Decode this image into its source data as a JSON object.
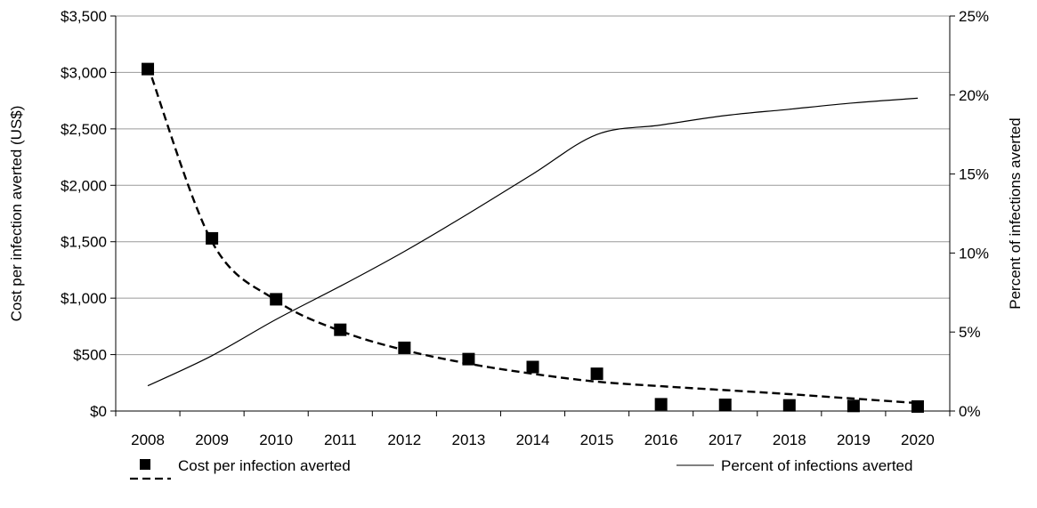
{
  "chart_data": {
    "type": "line",
    "title": "",
    "x": [
      "2008",
      "2009",
      "2010",
      "2011",
      "2012",
      "2013",
      "2014",
      "2015",
      "2016",
      "2017",
      "2018",
      "2019",
      "2020"
    ],
    "xlabel": "",
    "ylabel": "Cost per infection averted (US$)",
    "y2label": "Percent of infections averted",
    "ylim": [
      0,
      3500
    ],
    "y2lim": [
      0,
      25
    ],
    "yticks": [
      "$0",
      "$500",
      "$1,000",
      "$1,500",
      "$2,000",
      "$2,500",
      "$3,000",
      "$3,500"
    ],
    "yticks_values": [
      0,
      500,
      1000,
      1500,
      2000,
      2500,
      3000,
      3500
    ],
    "y2ticks": [
      "0%",
      "5%",
      "10%",
      "15%",
      "20%",
      "25%"
    ],
    "y2ticks_values": [
      0,
      5,
      10,
      15,
      20,
      25
    ],
    "grid": true,
    "legend_position": "bottom",
    "series": [
      {
        "name": "Cost per infection averted",
        "axis": "left",
        "style": "markers-with-dashed-trend",
        "marker": "square",
        "color": "#000000",
        "values": [
          3030,
          1530,
          990,
          720,
          560,
          460,
          390,
          330,
          60,
          55,
          50,
          45,
          40
        ],
        "trend": [
          3060,
          1500,
          980,
          710,
          540,
          420,
          330,
          260,
          220,
          185,
          150,
          110,
          70
        ]
      },
      {
        "name": "Percent of infections averted",
        "axis": "right",
        "style": "solid-line",
        "color": "#000000",
        "values": [
          1.6,
          3.5,
          5.8,
          7.9,
          10.1,
          12.5,
          15.0,
          17.5,
          18.1,
          18.7,
          19.1,
          19.5,
          19.8
        ]
      }
    ]
  }
}
